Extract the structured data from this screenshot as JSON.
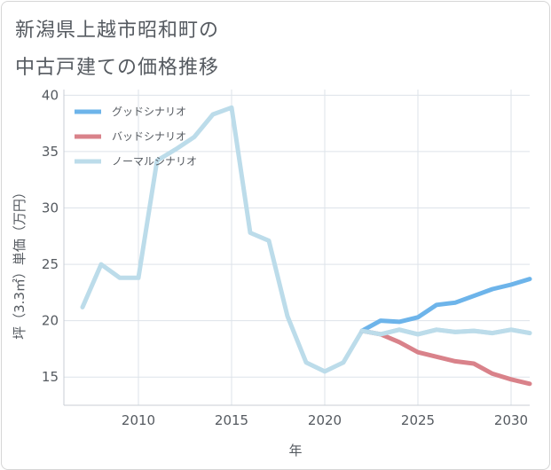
{
  "header": {
    "title_line1": "新潟県上越市昭和町の",
    "title_line2": "中古戸建ての価格推移"
  },
  "chart_data": {
    "type": "line",
    "title": "新潟県上越市昭和町の中古戸建ての価格推移",
    "xlabel": "年",
    "ylabel": "坪（3.3㎡）単価（万円）",
    "xlim": [
      2006,
      2031
    ],
    "ylim": [
      12.5,
      40.5
    ],
    "xticks": [
      2010,
      2015,
      2020,
      2025,
      2030
    ],
    "yticks": [
      15,
      20,
      25,
      30,
      35,
      40
    ],
    "legend_position": "top-left",
    "series": [
      {
        "name": "グッドシナリオ",
        "color": "#6db4ea",
        "x": [
          2022,
          2023,
          2024,
          2025,
          2026,
          2027,
          2028,
          2029,
          2030,
          2031
        ],
        "values": [
          19.1,
          20.0,
          19.9,
          20.3,
          21.4,
          21.6,
          22.2,
          22.8,
          23.2,
          23.7
        ]
      },
      {
        "name": "バッドシナリオ",
        "color": "#d9828a",
        "x": [
          2022,
          2023,
          2024,
          2025,
          2026,
          2027,
          2028,
          2029,
          2030,
          2031
        ],
        "values": [
          19.1,
          18.8,
          18.1,
          17.2,
          16.8,
          16.4,
          16.2,
          15.3,
          14.8,
          14.4
        ]
      },
      {
        "name": "ノーマルシナリオ",
        "color": "#bcdcea",
        "x": [
          2007,
          2008,
          2009,
          2010,
          2011,
          2012,
          2013,
          2014,
          2015,
          2016,
          2017,
          2018,
          2019,
          2020,
          2021,
          2022,
          2023,
          2024,
          2025,
          2026,
          2027,
          2028,
          2029,
          2030,
          2031
        ],
        "values": [
          21.2,
          25.0,
          23.8,
          23.8,
          34.2,
          35.2,
          36.3,
          38.3,
          38.9,
          27.8,
          27.1,
          20.4,
          16.3,
          15.5,
          16.3,
          19.1,
          18.8,
          19.2,
          18.8,
          19.2,
          19.0,
          19.1,
          18.9,
          19.2,
          18.9
        ]
      }
    ]
  }
}
